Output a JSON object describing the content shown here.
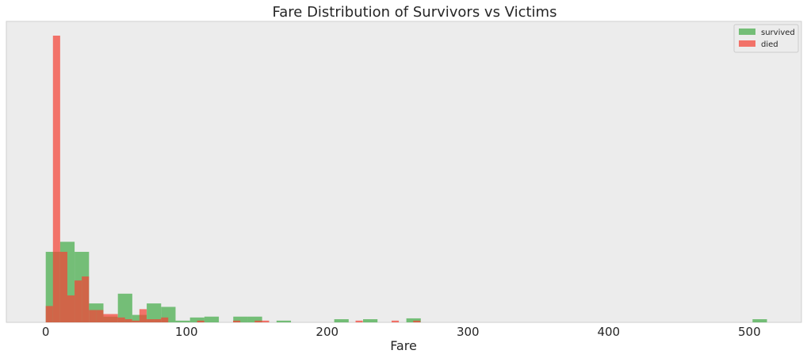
{
  "chart_data": {
    "type": "bar",
    "title": "Fare Distribution of Survivors vs Victims",
    "xlabel": "Fare",
    "ylabel": "",
    "xlim": [
      -28,
      537
    ],
    "ylim": [
      0,
      1.0
    ],
    "xticks": [
      0,
      100,
      200,
      300,
      400,
      500
    ],
    "grid": false,
    "legend_position": "top-right",
    "background": "#ececec",
    "series": [
      {
        "name": "survived",
        "color": "#4caf50",
        "opacity": 0.75,
        "bin_width": 10.25,
        "bins": [
          {
            "x0": 0.0,
            "h": 0.246
          },
          {
            "x0": 10.25,
            "h": 0.281
          },
          {
            "x0": 20.5,
            "h": 0.246
          },
          {
            "x0": 30.75,
            "h": 0.066
          },
          {
            "x0": 41.0,
            "h": 0.02
          },
          {
            "x0": 51.25,
            "h": 0.1
          },
          {
            "x0": 61.5,
            "h": 0.026
          },
          {
            "x0": 71.75,
            "h": 0.066
          },
          {
            "x0": 82.0,
            "h": 0.054
          },
          {
            "x0": 92.25,
            "h": 0.006
          },
          {
            "x0": 102.5,
            "h": 0.017
          },
          {
            "x0": 112.75,
            "h": 0.02
          },
          {
            "x0": 133.25,
            "h": 0.02
          },
          {
            "x0": 143.5,
            "h": 0.02
          },
          {
            "x0": 164.0,
            "h": 0.006
          },
          {
            "x0": 205.0,
            "h": 0.011
          },
          {
            "x0": 225.5,
            "h": 0.011
          },
          {
            "x0": 256.25,
            "h": 0.014
          },
          {
            "x0": 502.25,
            "h": 0.011
          }
        ]
      },
      {
        "name": "died",
        "color": "#f44336",
        "opacity": 0.72,
        "bin_width": 5.12,
        "bins": [
          {
            "x0": 0.0,
            "h": 0.057
          },
          {
            "x0": 5.12,
            "h": 1.0
          },
          {
            "x0": 10.24,
            "h": 0.246
          },
          {
            "x0": 15.36,
            "h": 0.094
          },
          {
            "x0": 20.48,
            "h": 0.146
          },
          {
            "x0": 25.6,
            "h": 0.16
          },
          {
            "x0": 30.72,
            "h": 0.043
          },
          {
            "x0": 35.84,
            "h": 0.043
          },
          {
            "x0": 40.96,
            "h": 0.029
          },
          {
            "x0": 46.08,
            "h": 0.029
          },
          {
            "x0": 51.2,
            "h": 0.017
          },
          {
            "x0": 56.32,
            "h": 0.011
          },
          {
            "x0": 61.44,
            "h": 0.006
          },
          {
            "x0": 66.56,
            "h": 0.046
          },
          {
            "x0": 71.68,
            "h": 0.011
          },
          {
            "x0": 76.8,
            "h": 0.011
          },
          {
            "x0": 81.92,
            "h": 0.017
          },
          {
            "x0": 107.52,
            "h": 0.006
          },
          {
            "x0": 133.12,
            "h": 0.006
          },
          {
            "x0": 148.48,
            "h": 0.006
          },
          {
            "x0": 153.6,
            "h": 0.006
          },
          {
            "x0": 220.16,
            "h": 0.006
          },
          {
            "x0": 245.76,
            "h": 0.006
          },
          {
            "x0": 261.12,
            "h": 0.006
          }
        ]
      }
    ]
  }
}
